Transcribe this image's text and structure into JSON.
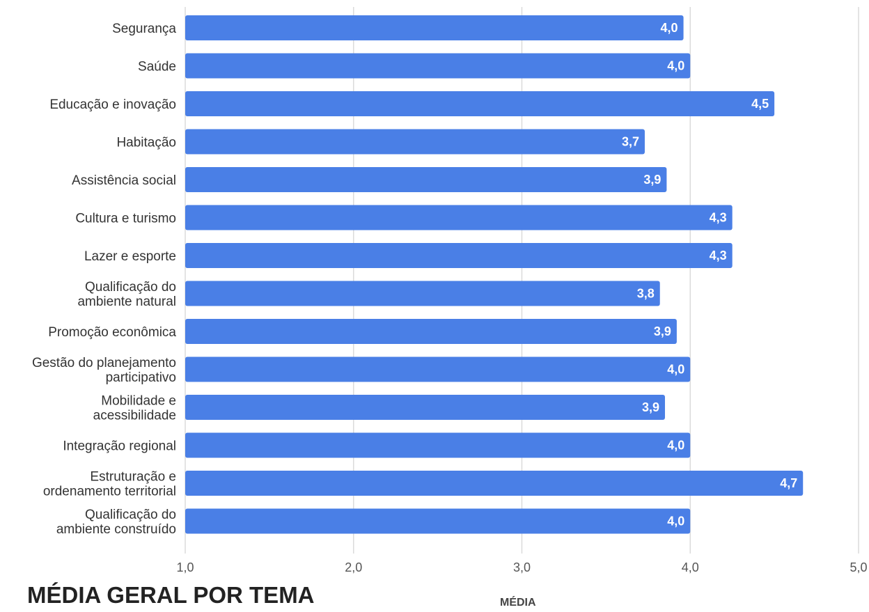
{
  "chart_data": {
    "type": "bar",
    "orientation": "horizontal",
    "title": "MÉDIA GERAL POR TEMA",
    "xlabel": "MÉDIA",
    "ylabel": "",
    "xlim": [
      1,
      5
    ],
    "ticks": [
      "1,0",
      "2,0",
      "3,0",
      "4,0",
      "5,0"
    ],
    "grid": true,
    "bar_color": "#4a7fe6",
    "categories": [
      "Segurança",
      "Saúde",
      "Educação e inovação",
      "Habitação",
      "Assistência social",
      "Cultura e turismo",
      "Lazer e esporte",
      "Qualificação do ambiente natural",
      "Promoção econômica",
      "Gestão do planejamento participativo",
      "Mobilidade e acessibilidade",
      "Integração regional",
      "Estruturação e ordenamento territorial",
      "Qualificação do ambiente construído"
    ],
    "category_lines": [
      [
        "Segurança"
      ],
      [
        "Saúde"
      ],
      [
        "Educação e inovação"
      ],
      [
        "Habitação"
      ],
      [
        "Assistência social"
      ],
      [
        "Cultura e turismo"
      ],
      [
        "Lazer e esporte"
      ],
      [
        "Qualificação do",
        "ambiente natural"
      ],
      [
        "Promoção econômica"
      ],
      [
        "Gestão do planejamento",
        "participativo"
      ],
      [
        "Mobilidade e",
        "acessibilidade"
      ],
      [
        "Integração regional"
      ],
      [
        "Estruturação e",
        "ordenamento territorial"
      ],
      [
        "Qualificação do",
        "ambiente construído"
      ]
    ],
    "values": [
      3.96,
      4.0,
      4.5,
      3.73,
      3.86,
      4.25,
      4.25,
      3.82,
      3.92,
      4.0,
      3.85,
      4.0,
      4.67,
      4.0
    ],
    "value_labels": [
      "4,0",
      "4,0",
      "4,5",
      "3,7",
      "3,9",
      "4,3",
      "4,3",
      "3,8",
      "3,9",
      "4,0",
      "3,9",
      "4,0",
      "4,7",
      "4,0"
    ]
  }
}
